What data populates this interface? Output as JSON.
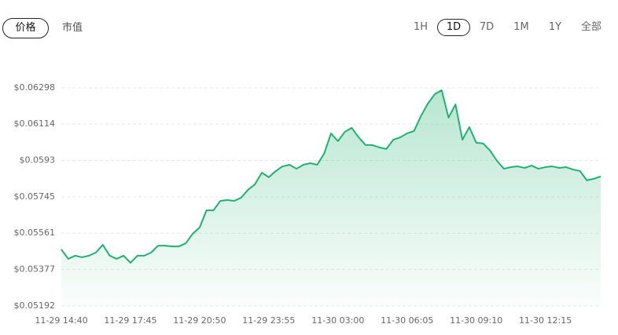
{
  "tabs": {
    "metric": [
      "价格",
      "市值"
    ],
    "active_metric": 0,
    "range": [
      "1H",
      "1D",
      "7D",
      "1M",
      "1Y",
      "全部"
    ],
    "active_range": 1
  },
  "chart_data": {
    "type": "area",
    "color": "#1fb16f",
    "grid": true,
    "categories": [
      "11-29 14:40",
      null,
      null,
      null,
      null,
      null,
      null,
      null,
      null,
      null,
      "11-29 17:45",
      null,
      null,
      null,
      null,
      null,
      null,
      null,
      null,
      null,
      "11-29 20:50",
      null,
      null,
      null,
      null,
      null,
      null,
      null,
      null,
      null,
      "11-29 23:55",
      null,
      null,
      null,
      null,
      null,
      null,
      null,
      null,
      null,
      "11-30 03:00",
      null,
      null,
      null,
      null,
      null,
      null,
      null,
      null,
      null,
      "11-30 06:05",
      null,
      null,
      null,
      null,
      null,
      null,
      null,
      null,
      null,
      "11-30 09:10",
      null,
      null,
      null,
      null,
      null,
      null,
      null,
      null,
      null,
      "11-30 12:15",
      null,
      null,
      null,
      null,
      null,
      null,
      null,
      null
    ],
    "values": [
      0.05479,
      0.05431,
      0.05447,
      0.05439,
      0.05447,
      0.05463,
      0.05502,
      0.05447,
      0.05431,
      0.05447,
      0.05411,
      0.05447,
      0.05447,
      0.05463,
      0.05498,
      0.05498,
      0.05494,
      0.05494,
      0.0551,
      0.05558,
      0.0559,
      0.05677,
      0.05677,
      0.05725,
      0.05729,
      0.05725,
      0.05741,
      0.05781,
      0.05809,
      0.05868,
      0.05845,
      0.05876,
      0.059,
      0.05908,
      0.05888,
      0.05908,
      0.05916,
      0.05908,
      0.05964,
      0.06067,
      0.06028,
      0.06075,
      0.06095,
      0.06047,
      0.06008,
      0.06008,
      0.05996,
      0.05988,
      0.06035,
      0.06047,
      0.06067,
      0.06079,
      0.06155,
      0.06218,
      0.06266,
      0.06286,
      0.06147,
      0.06214,
      0.06035,
      0.06099,
      0.0602,
      0.06016,
      0.0598,
      0.05928,
      0.05888,
      0.05896,
      0.059,
      0.05892,
      0.05904,
      0.05888,
      0.05896,
      0.059,
      0.05892,
      0.05896,
      0.05884,
      0.05876,
      0.05829,
      0.05837,
      0.05849
    ],
    "ylim": [
      0.05192,
      0.06298
    ],
    "yticks": [
      {
        "value": 0.05192,
        "label": "$0.05192"
      },
      {
        "value": 0.05377,
        "label": "$0.05377"
      },
      {
        "value": 0.05561,
        "label": "$0.05561"
      },
      {
        "value": 0.05745,
        "label": "$0.05745"
      },
      {
        "value": 0.0593,
        "label": "$0.0593"
      },
      {
        "value": 0.06114,
        "label": "$0.06114"
      },
      {
        "value": 0.06298,
        "label": "$0.06298"
      }
    ]
  }
}
